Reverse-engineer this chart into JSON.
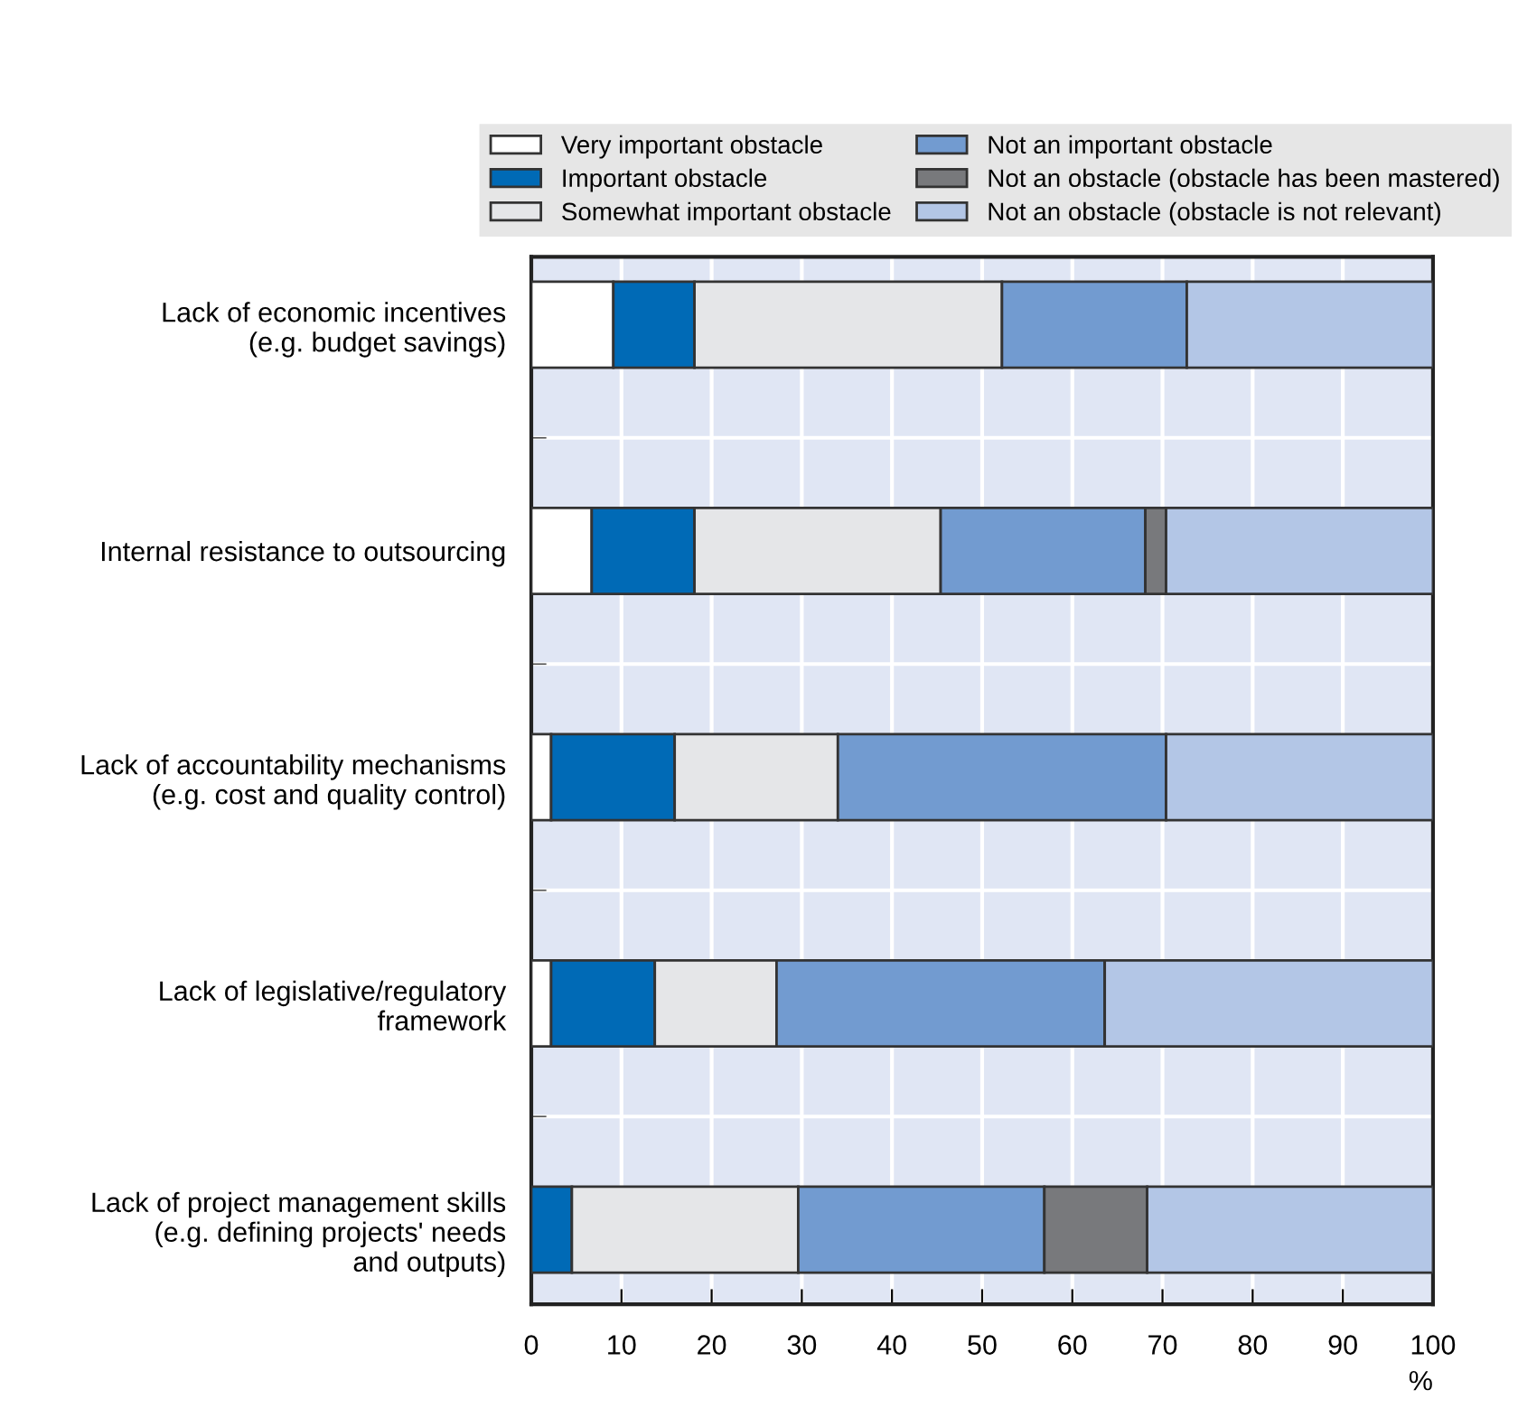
{
  "chart_data": {
    "type": "bar",
    "orientation": "horizontal",
    "stacked": true,
    "categories": [
      "Lack of economic incentives\n(e.g. budget savings)",
      "Internal resistance to outsourcing",
      "Lack of accountability mechanisms\n(e.g. cost and quality control)",
      "Lack of legislative/regulatory\nframework",
      "Lack of project management skills\n(e.g. defining projects' needs\nand outputs)"
    ],
    "series": [
      {
        "name": "Very important obstacle",
        "color": "#ffffff",
        "values": [
          9.1,
          6.7,
          2.2,
          2.2,
          0
        ]
      },
      {
        "name": "Important obstacle",
        "color": "#006ab6",
        "values": [
          9.0,
          11.4,
          13.7,
          11.5,
          4.5
        ]
      },
      {
        "name": "Somewhat important obstacle",
        "color": "#e5e6e8",
        "values": [
          34.1,
          27.3,
          18.1,
          13.5,
          25.1
        ]
      },
      {
        "name": "Not an important obstacle",
        "color": "#729bd0",
        "values": [
          20.5,
          22.7,
          36.4,
          36.4,
          27.3
        ]
      },
      {
        "name": "Not an obstacle (obstacle has been mastered)",
        "color": "#78797c",
        "values": [
          0,
          2.3,
          0,
          0,
          11.4
        ]
      },
      {
        "name": "Not an obstacle (obstacle is not relevant)",
        "color": "#b3c6e6",
        "values": [
          27.3,
          29.6,
          29.6,
          36.4,
          31.7
        ]
      }
    ],
    "xlabel": "%",
    "xlim": [
      0,
      100
    ],
    "xticks": [
      0,
      10,
      20,
      30,
      40,
      50,
      60,
      70,
      80,
      90,
      100
    ],
    "grid": true,
    "legend": "top"
  }
}
